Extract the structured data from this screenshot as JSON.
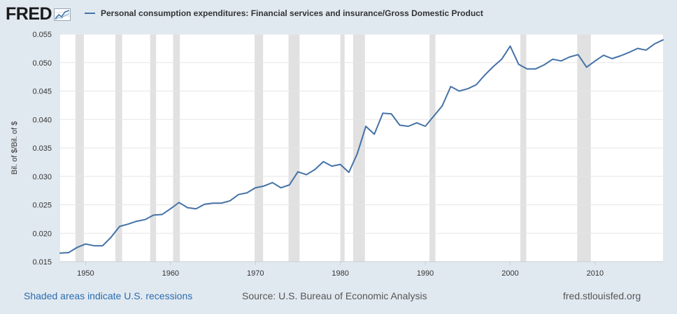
{
  "header": {
    "logo_text": "FRED",
    "legend_label": "Personal consumption expenditures: Financial services and insurance/Gross Domestic Product"
  },
  "footer": {
    "recessions_note": "Shaded areas indicate U.S. recessions",
    "source": "Source: U.S. Bureau of Economic Analysis",
    "site": "fred.stlouisfed.org"
  },
  "colors": {
    "background": "#e1e9f0",
    "plot_background": "#ffffff",
    "line": "#4572a7",
    "recession_band": "#e1e1e1"
  },
  "chart_data": {
    "type": "line",
    "title": "",
    "xlabel": "",
    "ylabel": "Bil. of $/Bil. of $",
    "xlim": [
      1947,
      2018
    ],
    "ylim": [
      0.015,
      0.055
    ],
    "x_ticks": [
      1950,
      1960,
      1970,
      1980,
      1990,
      2000,
      2010
    ],
    "y_ticks": [
      "0.015",
      "0.020",
      "0.025",
      "0.030",
      "0.035",
      "0.040",
      "0.045",
      "0.050",
      "0.055"
    ],
    "grid": "horizontal",
    "recessions": [
      [
        1948.8,
        1949.8
      ],
      [
        1953.5,
        1954.3
      ],
      [
        1957.6,
        1958.3
      ],
      [
        1960.3,
        1961.1
      ],
      [
        1969.9,
        1970.9
      ],
      [
        1973.9,
        1975.2
      ],
      [
        1980.0,
        1980.5
      ],
      [
        1981.5,
        1982.9
      ],
      [
        1990.5,
        1991.2
      ],
      [
        2001.2,
        2001.9
      ],
      [
        2007.9,
        2009.5
      ]
    ],
    "series": [
      {
        "name": "Personal consumption expenditures: Financial services and insurance/Gross Domestic Product",
        "x": [
          1947,
          1948,
          1949,
          1950,
          1951,
          1952,
          1953,
          1954,
          1955,
          1956,
          1957,
          1958,
          1959,
          1960,
          1961,
          1962,
          1963,
          1964,
          1965,
          1966,
          1967,
          1968,
          1969,
          1970,
          1971,
          1972,
          1973,
          1974,
          1975,
          1976,
          1977,
          1978,
          1979,
          1980,
          1981,
          1982,
          1983,
          1984,
          1985,
          1986,
          1987,
          1988,
          1989,
          1990,
          1991,
          1992,
          1993,
          1994,
          1995,
          1996,
          1997,
          1998,
          1999,
          2000,
          2001,
          2002,
          2003,
          2004,
          2005,
          2006,
          2007,
          2008,
          2009,
          2010,
          2011,
          2012,
          2013,
          2014,
          2015,
          2016,
          2017,
          2018
        ],
        "y": [
          0.0165,
          0.0166,
          0.0175,
          0.0181,
          0.0178,
          0.0178,
          0.0193,
          0.0212,
          0.0216,
          0.0221,
          0.0224,
          0.0232,
          0.0233,
          0.0243,
          0.0254,
          0.0245,
          0.0243,
          0.0251,
          0.0253,
          0.0253,
          0.0257,
          0.0268,
          0.0271,
          0.028,
          0.0283,
          0.0289,
          0.028,
          0.0285,
          0.0308,
          0.0303,
          0.0312,
          0.0326,
          0.0318,
          0.0321,
          0.0307,
          0.034,
          0.0388,
          0.0374,
          0.0411,
          0.041,
          0.039,
          0.0388,
          0.0394,
          0.0388,
          0.0406,
          0.0424,
          0.0458,
          0.045,
          0.0454,
          0.0461,
          0.0478,
          0.0493,
          0.0506,
          0.0529,
          0.0497,
          0.0489,
          0.0489,
          0.0496,
          0.0506,
          0.0503,
          0.051,
          0.0514,
          0.0492,
          0.0503,
          0.0513,
          0.0507,
          0.0512,
          0.0518,
          0.0525,
          0.0522,
          0.0533,
          0.054
        ]
      }
    ]
  }
}
